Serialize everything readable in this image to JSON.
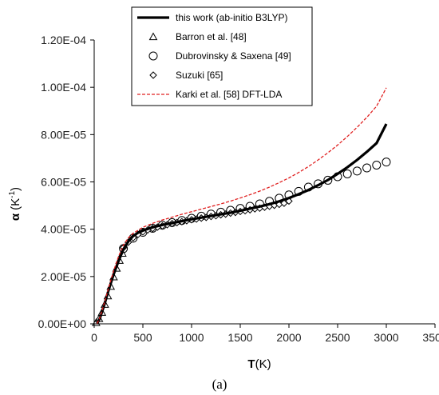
{
  "chart_data": {
    "type": "line",
    "panel_label": "(a)",
    "xlabel_main": "T",
    "xlabel_unit": "(K)",
    "ylabel_main": "α",
    "ylabel_unit": "(K",
    "ylabel_sup": "-1",
    "ylabel_close": ")",
    "xlim": [
      0,
      3500
    ],
    "ylim": [
      0,
      0.00012
    ],
    "xticks": [
      0,
      500,
      1000,
      1500,
      2000,
      2500,
      3000,
      3500
    ],
    "yticks": [
      0,
      2e-05,
      4e-05,
      6e-05,
      8e-05,
      0.0001,
      0.00012
    ],
    "xtick_labels": [
      "0",
      "500",
      "1000",
      "1500",
      "2000",
      "2500",
      "3000",
      "3500"
    ],
    "ytick_labels": [
      "0.00E+00",
      "2.00E-05",
      "4.00E-05",
      "6.00E-05",
      "8.00E-05",
      "1.00E-04",
      "1.20E-04"
    ],
    "grid": false,
    "legend_position": "top-right",
    "colors": {
      "this_work": "#000000",
      "karki": "#e02020",
      "markers": "#000000"
    },
    "series": [
      {
        "name": "this work (ab-initio B3LYP)",
        "style": "solid-thick",
        "x": [
          30,
          60,
          100,
          150,
          200,
          250,
          300,
          350,
          400,
          450,
          500,
          600,
          700,
          800,
          900,
          1000,
          1100,
          1200,
          1300,
          1400,
          1500,
          1600,
          1700,
          1800,
          1900,
          2000,
          2100,
          2200,
          2300,
          2400,
          2500,
          2600,
          2700,
          2800,
          2900,
          3000
        ],
        "y": [
          1e-07,
          2.5e-06,
          7.5e-06,
          1.45e-05,
          2.1e-05,
          2.65e-05,
          3.15e-05,
          3.48e-05,
          3.71e-05,
          3.85e-05,
          3.94e-05,
          4.08e-05,
          4.18e-05,
          4.26e-05,
          4.34e-05,
          4.42e-05,
          4.49e-05,
          4.56e-05,
          4.63e-05,
          4.7e-05,
          4.78e-05,
          4.87e-05,
          4.96e-05,
          5.06e-05,
          5.18e-05,
          5.32e-05,
          5.48e-05,
          5.66e-05,
          5.86e-05,
          6.08e-05,
          6.34e-05,
          6.62e-05,
          6.93e-05,
          7.27e-05,
          7.64e-05,
          8.45e-05
        ]
      },
      {
        "name": "Karki et al. [58] DFT-LDA",
        "style": "dashed",
        "x": [
          30,
          60,
          100,
          150,
          200,
          250,
          300,
          350,
          400,
          500,
          600,
          700,
          800,
          900,
          1000,
          1100,
          1200,
          1300,
          1400,
          1500,
          1600,
          1700,
          1800,
          1900,
          2000,
          2100,
          2200,
          2300,
          2400,
          2500,
          2600,
          2700,
          2800,
          2900,
          3000
        ],
        "y": [
          1e-07,
          2.8e-06,
          8.2e-06,
          1.55e-05,
          2.25e-05,
          2.85e-05,
          3.33e-05,
          3.63e-05,
          3.83e-05,
          4.08e-05,
          4.25e-05,
          4.39e-05,
          4.51e-05,
          4.63e-05,
          4.74e-05,
          4.85e-05,
          4.96e-05,
          5.07e-05,
          5.19e-05,
          5.32e-05,
          5.46e-05,
          5.61e-05,
          5.78e-05,
          5.97e-05,
          6.17e-05,
          6.4e-05,
          6.65e-05,
          6.93e-05,
          7.23e-05,
          7.56e-05,
          7.92e-05,
          8.31e-05,
          8.73e-05,
          9.2e-05,
          9.98e-05
        ]
      },
      {
        "name": "Barron et al. [48]",
        "style": "marker-triangle",
        "x": [
          20,
          50,
          80,
          110,
          140,
          170,
          200,
          230,
          260,
          290
        ],
        "y": [
          5e-07,
          2.2e-06,
          4.8e-06,
          8.2e-06,
          1.18e-05,
          1.58e-05,
          1.98e-05,
          2.35e-05,
          2.68e-05,
          2.98e-05
        ]
      },
      {
        "name": "Dubrovinsky & Saxena [49]",
        "style": "marker-circle",
        "x": [
          300,
          400,
          500,
          600,
          700,
          800,
          900,
          1000,
          1100,
          1200,
          1300,
          1400,
          1500,
          1600,
          1700,
          1800,
          1900,
          2000,
          2100,
          2200,
          2300,
          2400,
          2500,
          2600,
          2700,
          2800,
          2900,
          3000
        ],
        "y": [
          3.18e-05,
          3.62e-05,
          3.87e-05,
          4.04e-05,
          4.17e-05,
          4.28e-05,
          4.37e-05,
          4.46e-05,
          4.55e-05,
          4.64e-05,
          4.72e-05,
          4.8e-05,
          4.88e-05,
          4.97e-05,
          5.07e-05,
          5.18e-05,
          5.31e-05,
          5.45e-05,
          5.6e-05,
          5.78e-05,
          5.92e-05,
          6.07e-05,
          6.22e-05,
          6.34e-05,
          6.46e-05,
          6.59e-05,
          6.71e-05,
          6.84e-05
        ]
      },
      {
        "name": "Suzuki [65]",
        "style": "marker-diamond",
        "x": [
          300,
          350,
          400,
          450,
          500,
          550,
          600,
          650,
          700,
          750,
          800,
          850,
          900,
          950,
          1000,
          1050,
          1100,
          1150,
          1200,
          1250,
          1300,
          1350,
          1400,
          1450,
          1500,
          1550,
          1600,
          1650,
          1700,
          1750,
          1800,
          1850,
          1900,
          1950,
          2000
        ],
        "y": [
          3.22e-05,
          3.45e-05,
          3.64e-05,
          3.78e-05,
          3.89e-05,
          3.97e-05,
          4.03e-05,
          4.09e-05,
          4.14e-05,
          4.19e-05,
          4.24e-05,
          4.28e-05,
          4.32e-05,
          4.36e-05,
          4.4e-05,
          4.43e-05,
          4.47e-05,
          4.5e-05,
          4.54e-05,
          4.57e-05,
          4.61e-05,
          4.64e-05,
          4.68e-05,
          4.71e-05,
          4.75e-05,
          4.78e-05,
          4.82e-05,
          4.86e-05,
          4.89e-05,
          4.93e-05,
          4.97e-05,
          5.01e-05,
          5.05e-05,
          5.1e-05,
          5.19e-05
        ]
      }
    ],
    "legend": [
      {
        "label": "this work (ab-initio B3LYP)",
        "style": "solid-thick"
      },
      {
        "label": "Barron et al. [48]",
        "style": "marker-triangle"
      },
      {
        "label": "Dubrovinsky & Saxena [49]",
        "style": "marker-circle"
      },
      {
        "label": "Suzuki [65]",
        "style": "marker-diamond"
      },
      {
        "label": "Karki et al. [58] DFT-LDA",
        "style": "dashed"
      }
    ]
  }
}
